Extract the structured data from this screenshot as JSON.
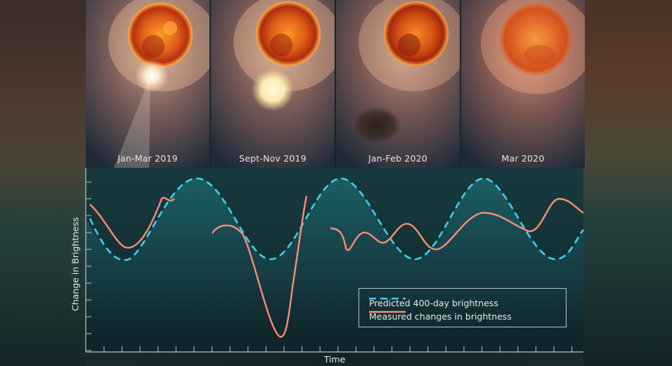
{
  "panels": [
    {
      "label": "Jan-Mar 2019"
    },
    {
      "label": "Sept-Nov 2019"
    },
    {
      "label": "Jan-Feb 2020"
    },
    {
      "label": "Mar 2020"
    }
  ],
  "chart": {
    "ylabel": "Change in Brightness",
    "xlabel": "Time"
  },
  "legend": {
    "predicted_label": "Predicted 400-day brightness",
    "measured_label": "Measured changes in brightness"
  },
  "colors": {
    "predicted": "#3ed0ec",
    "measured": "#ff8c74",
    "star": "#d24a14",
    "background": "#152428"
  }
}
